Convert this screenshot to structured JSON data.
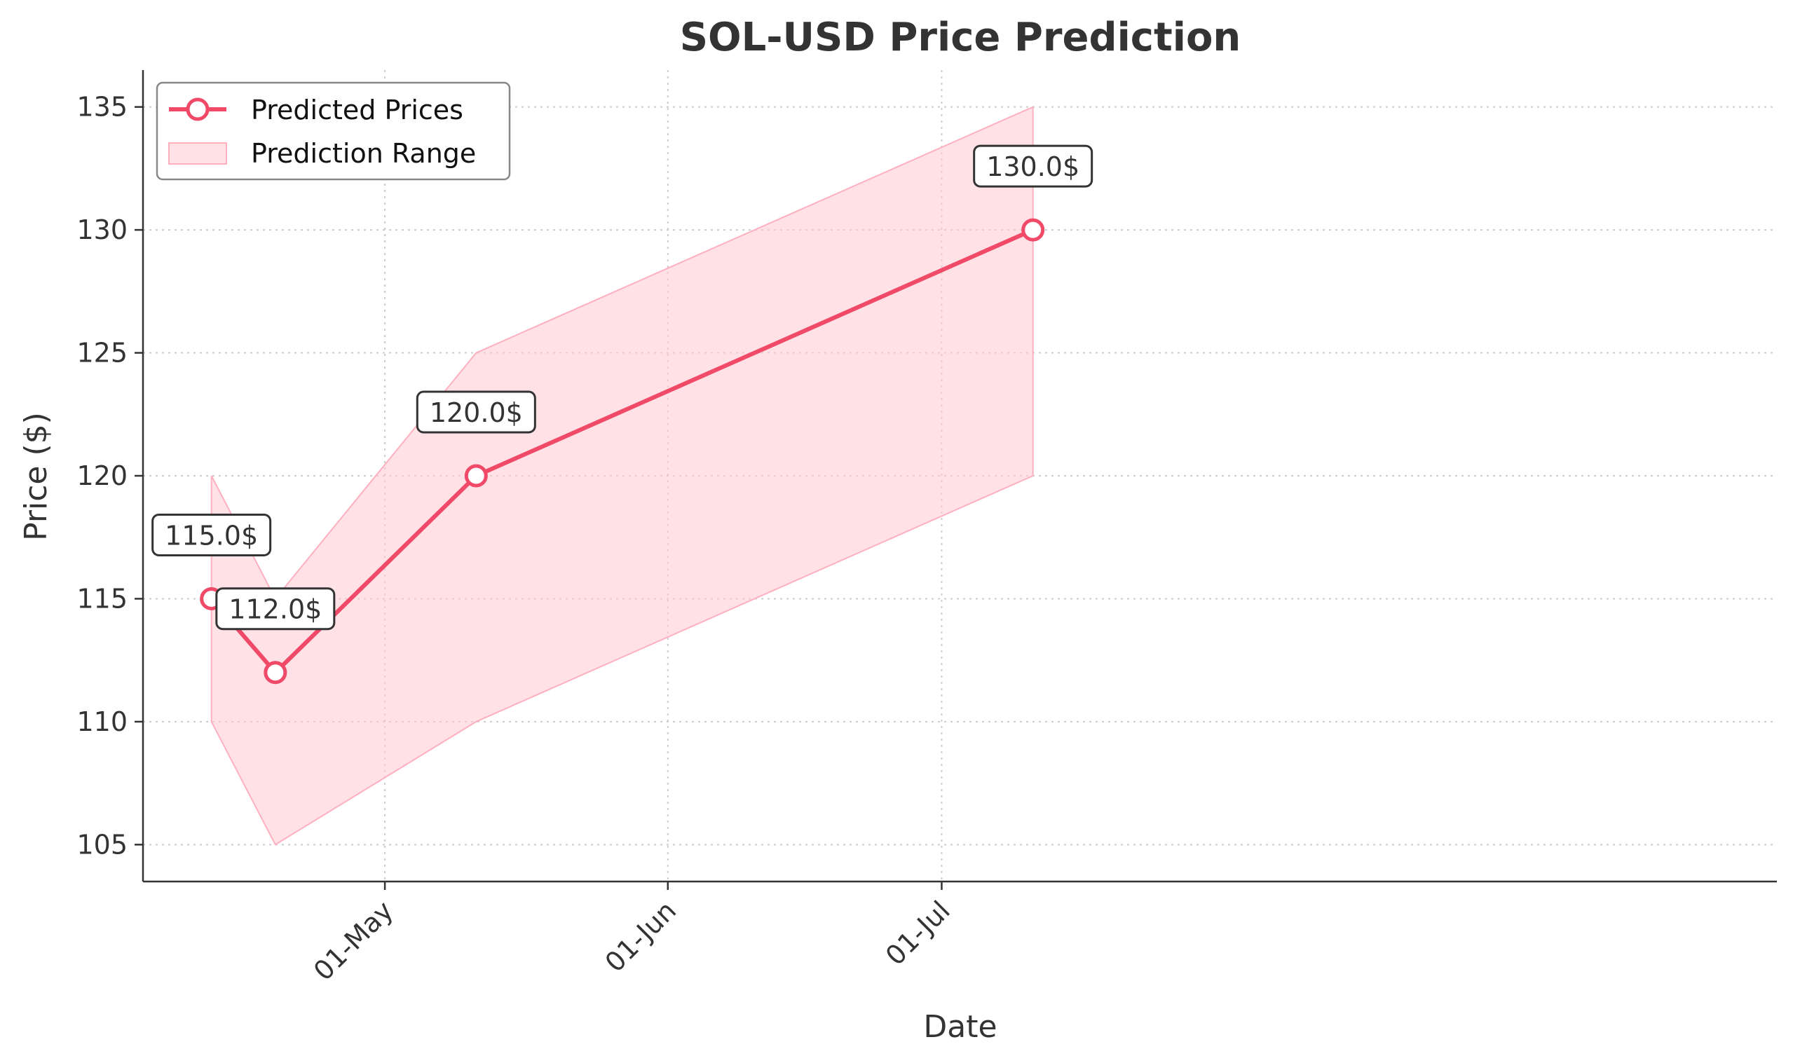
{
  "chart_data": {
    "type": "line",
    "title": "SOL-USD Price Prediction",
    "xlabel": "Date",
    "ylabel": "Price ($)",
    "ylim": [
      103.5,
      136.5
    ],
    "xlim_days_from_01_May": [
      -26.5,
      152.5
    ],
    "yticks": [
      105,
      110,
      115,
      120,
      125,
      130,
      135
    ],
    "xticks": [
      {
        "label": "01-May",
        "day": 0
      },
      {
        "label": "01-Jun",
        "day": 31
      },
      {
        "label": "01-Jul",
        "day": 61
      }
    ],
    "grid": true,
    "legend": {
      "location": "top-left",
      "entries": [
        "Predicted Prices",
        "Prediction Range"
      ]
    },
    "series": [
      {
        "name": "Predicted Prices",
        "color": "#f04a68",
        "points": [
          {
            "day": -19,
            "value": 115.0,
            "label": "115.0$"
          },
          {
            "day": -12,
            "value": 112.0,
            "label": "112.0$"
          },
          {
            "day": 10,
            "value": 120.0,
            "label": "120.0$"
          },
          {
            "day": 71,
            "value": 130.0,
            "label": "130.0$"
          }
        ]
      }
    ],
    "range": {
      "name": "Prediction Range",
      "color": "#ffc8d2",
      "upper": [
        120,
        115,
        125,
        135
      ],
      "lower": [
        110,
        105,
        110,
        120
      ]
    }
  }
}
